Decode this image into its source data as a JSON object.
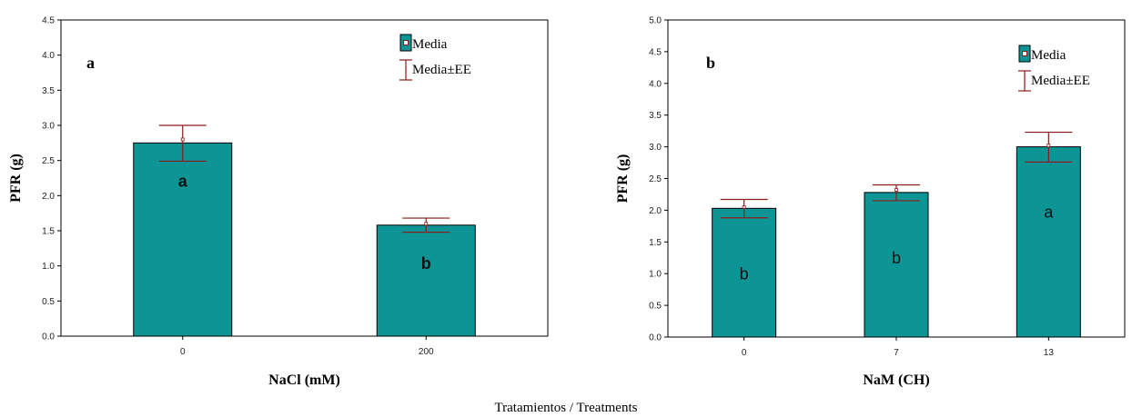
{
  "caption": "Tratamientos / Treatments",
  "colors": {
    "bar": "#0d9494",
    "bar_edge": "#000000",
    "error": "#8b1a1a",
    "marker": "#8b1a1a"
  },
  "chart_data": [
    {
      "type": "bar",
      "panel_label": "a",
      "xlabel": "NaCl (mM)",
      "ylabel": "PFR (g)",
      "categories": [
        "0",
        "200"
      ],
      "values": [
        2.75,
        1.58
      ],
      "mean_markers": [
        2.8,
        1.6
      ],
      "error_low": [
        2.49,
        1.48
      ],
      "error_high": [
        3.0,
        1.68
      ],
      "sig_labels": [
        "a",
        "b"
      ],
      "ylim": [
        0,
        4.5
      ],
      "yticks": [
        "0.0",
        "0.5",
        "1.0",
        "1.5",
        "2.0",
        "2.5",
        "3.0",
        "3.5",
        "4.0",
        "4.5"
      ],
      "legend": [
        "Media",
        "Media±EE"
      ],
      "legend_position": "top-right",
      "grid": false
    },
    {
      "type": "bar",
      "panel_label": "b",
      "xlabel": "NaM (CH)",
      "ylabel": "PFR (g)",
      "categories": [
        "0",
        "7",
        "13"
      ],
      "values": [
        2.03,
        2.28,
        3.0
      ],
      "mean_markers": [
        2.05,
        2.32,
        3.02
      ],
      "error_low": [
        1.88,
        2.15,
        2.76
      ],
      "error_high": [
        2.17,
        2.4,
        3.23
      ],
      "sig_labels": [
        "b",
        "b",
        "a"
      ],
      "ylim": [
        0,
        5.0
      ],
      "yticks": [
        "0.0",
        "0.5",
        "1.0",
        "1.5",
        "2.0",
        "2.5",
        "3.0",
        "3.5",
        "4.0",
        "4.5",
        "5.0"
      ],
      "legend": [
        "Media",
        "Media±EE"
      ],
      "legend_position": "top-right",
      "grid": false
    }
  ]
}
